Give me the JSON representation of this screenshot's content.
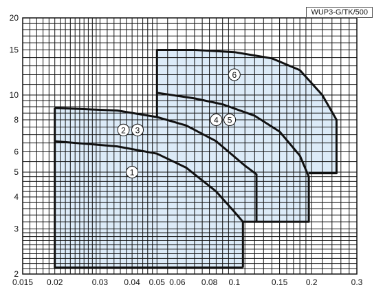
{
  "chart_data": {
    "type": "area",
    "title": "",
    "model_label": "WUP3-G/TK/500",
    "xlabel": "",
    "ylabel": "",
    "x_scale": "log",
    "y_scale": "log",
    "xlim": [
      0.015,
      0.3
    ],
    "ylim": [
      2,
      20
    ],
    "grid": true,
    "x_ticks": [
      {
        "value": 0.015,
        "label": "0.015"
      },
      {
        "value": 0.02,
        "label": "0.02"
      },
      {
        "value": 0.03,
        "label": "0.03"
      },
      {
        "value": 0.04,
        "label": "0.04"
      },
      {
        "value": 0.05,
        "label": "0.05"
      },
      {
        "value": 0.06,
        "label": "0.06"
      },
      {
        "value": 0.08,
        "label": "0.08"
      },
      {
        "value": 0.1,
        "label": "0.1"
      },
      {
        "value": 0.15,
        "label": "0.15"
      },
      {
        "value": 0.2,
        "label": "0.2"
      },
      {
        "value": 0.3,
        "label": "0.3"
      }
    ],
    "y_ticks": [
      {
        "value": 2,
        "label": "2"
      },
      {
        "value": 3,
        "label": "3"
      },
      {
        "value": 4,
        "label": "4"
      },
      {
        "value": 5,
        "label": "5"
      },
      {
        "value": 6,
        "label": "6"
      },
      {
        "value": 8,
        "label": "8"
      },
      {
        "value": 10,
        "label": "10"
      },
      {
        "value": 15,
        "label": "15"
      },
      {
        "value": 20,
        "label": "20"
      }
    ],
    "x_grid_values": [
      0.015,
      0.016,
      0.017,
      0.018,
      0.019,
      0.02,
      0.021,
      0.022,
      0.023,
      0.024,
      0.025,
      0.026,
      0.027,
      0.028,
      0.029,
      0.03,
      0.032,
      0.034,
      0.036,
      0.038,
      0.04,
      0.042,
      0.044,
      0.046,
      0.048,
      0.05,
      0.055,
      0.06,
      0.065,
      0.07,
      0.075,
      0.08,
      0.085,
      0.09,
      0.095,
      0.1,
      0.11,
      0.12,
      0.13,
      0.14,
      0.15,
      0.16,
      0.17,
      0.18,
      0.19,
      0.2,
      0.22,
      0.24,
      0.26,
      0.28,
      0.3
    ],
    "y_grid_values": [
      2,
      2.1,
      2.2,
      2.3,
      2.4,
      2.5,
      2.6,
      2.7,
      2.8,
      2.9,
      3,
      3.2,
      3.4,
      3.6,
      3.8,
      4,
      4.2,
      4.4,
      4.6,
      4.8,
      5,
      5.5,
      6,
      6.5,
      7,
      7.5,
      8,
      8.5,
      9,
      9.5,
      10,
      11,
      12,
      13,
      14,
      15,
      16,
      17,
      18,
      19,
      20
    ],
    "regions": [
      {
        "name": "1",
        "points": [
          [
            0.02,
            2.12
          ],
          [
            0.108,
            2.12
          ],
          [
            0.108,
            3.2
          ],
          [
            0.1,
            3.5
          ],
          [
            0.085,
            4.2
          ],
          [
            0.065,
            5.2
          ],
          [
            0.05,
            5.9
          ],
          [
            0.035,
            6.3
          ],
          [
            0.02,
            6.6
          ]
        ]
      },
      {
        "name": "2 3",
        "points": [
          [
            0.02,
            6.6
          ],
          [
            0.035,
            6.3
          ],
          [
            0.05,
            5.9
          ],
          [
            0.065,
            5.2
          ],
          [
            0.085,
            4.2
          ],
          [
            0.1,
            3.5
          ],
          [
            0.108,
            3.2
          ],
          [
            0.122,
            3.2
          ],
          [
            0.122,
            4.9
          ],
          [
            0.11,
            5.3
          ],
          [
            0.085,
            6.6
          ],
          [
            0.065,
            7.6
          ],
          [
            0.05,
            8.2
          ],
          [
            0.035,
            8.7
          ],
          [
            0.02,
            8.9
          ]
        ]
      },
      {
        "name": "4 5",
        "points": [
          [
            0.05,
            8.2
          ],
          [
            0.065,
            7.6
          ],
          [
            0.085,
            6.6
          ],
          [
            0.11,
            5.3
          ],
          [
            0.122,
            4.9
          ],
          [
            0.122,
            3.2
          ],
          [
            0.195,
            3.2
          ],
          [
            0.195,
            4.8
          ],
          [
            0.18,
            5.8
          ],
          [
            0.15,
            7.2
          ],
          [
            0.12,
            8.3
          ],
          [
            0.09,
            9.2
          ],
          [
            0.07,
            9.7
          ],
          [
            0.05,
            10.2
          ]
        ]
      },
      {
        "name": "6",
        "points": [
          [
            0.05,
            10.2
          ],
          [
            0.07,
            9.7
          ],
          [
            0.09,
            9.2
          ],
          [
            0.12,
            8.3
          ],
          [
            0.15,
            7.2
          ],
          [
            0.18,
            5.8
          ],
          [
            0.195,
            4.8
          ],
          [
            0.195,
            4.95
          ],
          [
            0.25,
            4.95
          ],
          [
            0.25,
            8.0
          ],
          [
            0.22,
            10.0
          ],
          [
            0.18,
            12.5
          ],
          [
            0.14,
            13.9
          ],
          [
            0.1,
            14.7
          ],
          [
            0.07,
            15.0
          ],
          [
            0.05,
            15.0
          ]
        ]
      }
    ],
    "boundaries": [
      {
        "name": "boundary-1",
        "points": [
          [
            0.02,
            6.6
          ],
          [
            0.035,
            6.3
          ],
          [
            0.05,
            5.9
          ],
          [
            0.065,
            5.2
          ],
          [
            0.085,
            4.2
          ],
          [
            0.1,
            3.5
          ],
          [
            0.108,
            3.2
          ],
          [
            0.108,
            2.12
          ]
        ]
      },
      {
        "name": "boundary-23",
        "points": [
          [
            0.02,
            8.9
          ],
          [
            0.035,
            8.7
          ],
          [
            0.05,
            8.2
          ],
          [
            0.065,
            7.6
          ],
          [
            0.085,
            6.6
          ],
          [
            0.11,
            5.3
          ],
          [
            0.122,
            4.9
          ],
          [
            0.122,
            3.2
          ]
        ]
      },
      {
        "name": "boundary-45",
        "points": [
          [
            0.05,
            8.2
          ],
          [
            0.05,
            10.2
          ],
          [
            0.07,
            9.7
          ],
          [
            0.09,
            9.2
          ],
          [
            0.12,
            8.3
          ],
          [
            0.15,
            7.2
          ],
          [
            0.18,
            5.8
          ],
          [
            0.195,
            4.8
          ],
          [
            0.195,
            3.2
          ],
          [
            0.108,
            3.2
          ]
        ]
      },
      {
        "name": "boundary-6",
        "points": [
          [
            0.05,
            10.2
          ],
          [
            0.05,
            15.0
          ],
          [
            0.07,
            15.0
          ],
          [
            0.1,
            14.7
          ],
          [
            0.14,
            13.9
          ],
          [
            0.18,
            12.5
          ],
          [
            0.22,
            10.0
          ],
          [
            0.25,
            8.0
          ],
          [
            0.25,
            4.95
          ],
          [
            0.195,
            4.95
          ]
        ]
      },
      {
        "name": "boundary-outer",
        "points": [
          [
            0.02,
            6.6
          ],
          [
            0.02,
            8.9
          ]
        ]
      },
      {
        "name": "boundary-bottom",
        "points": [
          [
            0.02,
            6.6
          ],
          [
            0.02,
            2.12
          ],
          [
            0.108,
            2.12
          ]
        ]
      }
    ],
    "annotations": [
      {
        "label": "1",
        "x": 0.04,
        "y": 5.0
      },
      {
        "label": "2",
        "x": 0.037,
        "y": 7.3
      },
      {
        "label": "3",
        "x": 0.042,
        "y": 7.3
      },
      {
        "label": "4",
        "x": 0.085,
        "y": 8.0
      },
      {
        "label": "5",
        "x": 0.096,
        "y": 8.0
      },
      {
        "label": "6",
        "x": 0.1,
        "y": 12.0
      }
    ],
    "colors": {
      "fill": "#dcebf8",
      "boundary": "#111111",
      "grid": "#111111",
      "background": "#ffffff"
    }
  }
}
